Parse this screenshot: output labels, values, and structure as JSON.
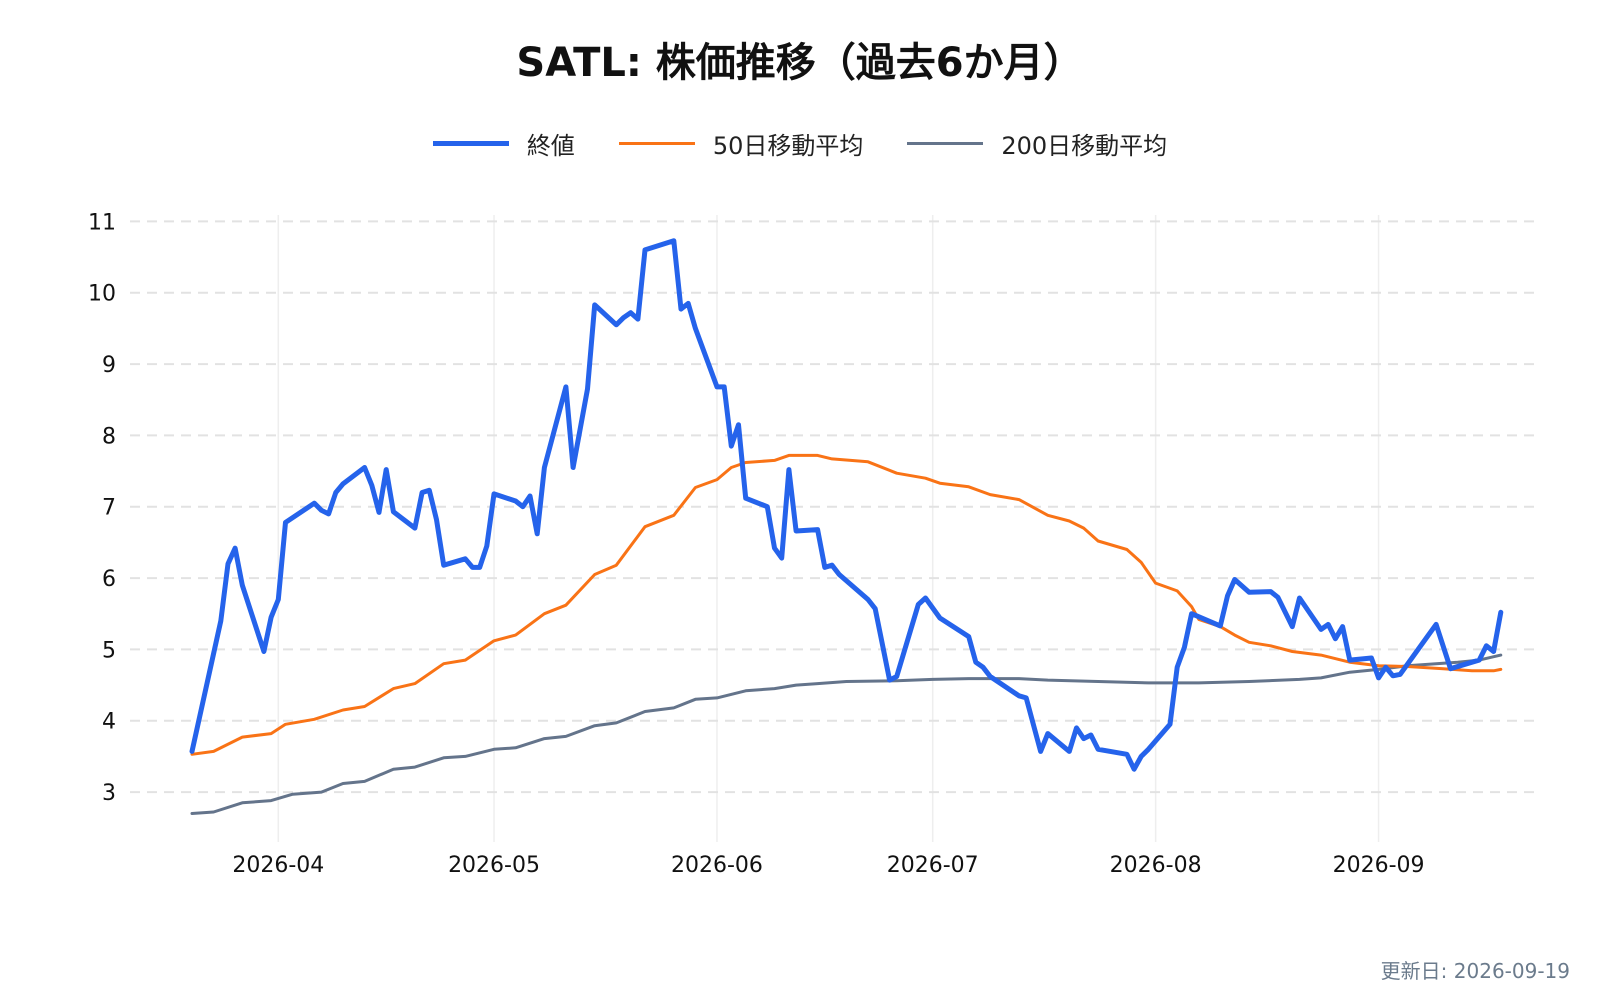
{
  "title": "SATL: 株価推移（過去6か月）",
  "updated_label": "更新日: 2026-09-19",
  "chart_data": {
    "type": "line",
    "x_range": [
      "2026-03-20",
      "2026-09-19"
    ],
    "ylim": [
      2.3,
      11.3
    ],
    "yticks": [
      3,
      4,
      5,
      6,
      7,
      8,
      9,
      10,
      11
    ],
    "xticks": [
      "2026-04-01",
      "2026-05-01",
      "2026-06-01",
      "2026-07-01",
      "2026-08-01",
      "2026-09-01"
    ],
    "xtick_labels": [
      "2026-04",
      "2026-05",
      "2026-06",
      "2026-07",
      "2026-08",
      "2026-09"
    ],
    "grid": "horizontal dashed + vertical",
    "legend_position": "top-center",
    "series": [
      {
        "name": "終値",
        "color": "#2563eb",
        "width": 5,
        "points": [
          [
            "2026-03-20",
            3.57
          ],
          [
            "2026-03-24",
            5.4
          ],
          [
            "2026-03-25",
            6.2
          ],
          [
            "2026-03-26",
            6.42
          ],
          [
            "2026-03-27",
            5.9
          ],
          [
            "2026-03-30",
            4.97
          ],
          [
            "2026-03-31",
            5.45
          ],
          [
            "2026-04-01",
            5.7
          ],
          [
            "2026-04-02",
            6.78
          ],
          [
            "2026-04-06",
            7.05
          ],
          [
            "2026-04-07",
            6.95
          ],
          [
            "2026-04-08",
            6.9
          ],
          [
            "2026-04-09",
            7.2
          ],
          [
            "2026-04-10",
            7.32
          ],
          [
            "2026-04-13",
            7.55
          ],
          [
            "2026-04-14",
            7.3
          ],
          [
            "2026-04-15",
            6.92
          ],
          [
            "2026-04-16",
            7.52
          ],
          [
            "2026-04-17",
            6.93
          ],
          [
            "2026-04-20",
            6.7
          ],
          [
            "2026-04-21",
            7.2
          ],
          [
            "2026-04-22",
            7.23
          ],
          [
            "2026-04-23",
            6.82
          ],
          [
            "2026-04-24",
            6.18
          ],
          [
            "2026-04-27",
            6.27
          ],
          [
            "2026-04-28",
            6.15
          ],
          [
            "2026-04-29",
            6.15
          ],
          [
            "2026-04-30",
            6.45
          ],
          [
            "2026-05-01",
            7.18
          ],
          [
            "2026-05-04",
            7.08
          ],
          [
            "2026-05-05",
            7.0
          ],
          [
            "2026-05-06",
            7.15
          ],
          [
            "2026-05-07",
            6.62
          ],
          [
            "2026-05-08",
            7.55
          ],
          [
            "2026-05-11",
            8.68
          ],
          [
            "2026-05-12",
            7.55
          ],
          [
            "2026-05-14",
            8.65
          ],
          [
            "2026-05-15",
            9.83
          ],
          [
            "2026-05-18",
            9.55
          ],
          [
            "2026-05-19",
            9.65
          ],
          [
            "2026-05-20",
            9.72
          ],
          [
            "2026-05-21",
            9.63
          ],
          [
            "2026-05-22",
            10.6
          ],
          [
            "2026-05-26",
            10.73
          ],
          [
            "2026-05-27",
            9.77
          ],
          [
            "2026-05-28",
            9.85
          ],
          [
            "2026-05-29",
            9.5
          ],
          [
            "2026-06-01",
            8.68
          ],
          [
            "2026-06-02",
            8.68
          ],
          [
            "2026-06-03",
            7.85
          ],
          [
            "2026-06-04",
            8.15
          ],
          [
            "2026-06-05",
            7.12
          ],
          [
            "2026-06-08",
            7.0
          ],
          [
            "2026-06-09",
            6.42
          ],
          [
            "2026-06-10",
            6.28
          ],
          [
            "2026-06-11",
            7.52
          ],
          [
            "2026-06-12",
            6.66
          ],
          [
            "2026-06-15",
            6.68
          ],
          [
            "2026-06-16",
            6.15
          ],
          [
            "2026-06-17",
            6.18
          ],
          [
            "2026-06-18",
            6.05
          ],
          [
            "2026-06-22",
            5.7
          ],
          [
            "2026-06-23",
            5.57
          ],
          [
            "2026-06-25",
            4.57
          ],
          [
            "2026-06-26",
            4.62
          ],
          [
            "2026-06-29",
            5.63
          ],
          [
            "2026-06-30",
            5.72
          ],
          [
            "2026-07-01",
            5.58
          ],
          [
            "2026-07-02",
            5.44
          ],
          [
            "2026-07-06",
            5.18
          ],
          [
            "2026-07-07",
            4.82
          ],
          [
            "2026-07-08",
            4.75
          ],
          [
            "2026-07-09",
            4.62
          ],
          [
            "2026-07-13",
            4.35
          ],
          [
            "2026-07-14",
            4.32
          ],
          [
            "2026-07-16",
            3.57
          ],
          [
            "2026-07-17",
            3.82
          ],
          [
            "2026-07-20",
            3.57
          ],
          [
            "2026-07-21",
            3.9
          ],
          [
            "2026-07-22",
            3.75
          ],
          [
            "2026-07-23",
            3.8
          ],
          [
            "2026-07-24",
            3.6
          ],
          [
            "2026-07-28",
            3.53
          ],
          [
            "2026-07-29",
            3.32
          ],
          [
            "2026-07-30",
            3.5
          ],
          [
            "2026-07-31",
            3.6
          ],
          [
            "2026-08-03",
            3.95
          ],
          [
            "2026-08-04",
            4.75
          ],
          [
            "2026-08-05",
            5.03
          ],
          [
            "2026-08-06",
            5.5
          ],
          [
            "2026-08-10",
            5.33
          ],
          [
            "2026-08-11",
            5.75
          ],
          [
            "2026-08-12",
            5.98
          ],
          [
            "2026-08-14",
            5.8
          ],
          [
            "2026-08-17",
            5.81
          ],
          [
            "2026-08-18",
            5.73
          ],
          [
            "2026-08-20",
            5.32
          ],
          [
            "2026-08-21",
            5.72
          ],
          [
            "2026-08-24",
            5.28
          ],
          [
            "2026-08-25",
            5.35
          ],
          [
            "2026-08-26",
            5.15
          ],
          [
            "2026-08-27",
            5.32
          ],
          [
            "2026-08-28",
            4.85
          ],
          [
            "2026-08-31",
            4.88
          ],
          [
            "2026-09-01",
            4.6
          ],
          [
            "2026-09-02",
            4.75
          ],
          [
            "2026-09-03",
            4.63
          ],
          [
            "2026-09-04",
            4.65
          ],
          [
            "2026-09-09",
            5.35
          ],
          [
            "2026-09-11",
            4.73
          ],
          [
            "2026-09-14",
            4.82
          ],
          [
            "2026-09-15",
            4.85
          ],
          [
            "2026-09-16",
            5.05
          ],
          [
            "2026-09-17",
            4.97
          ],
          [
            "2026-09-18",
            5.52
          ]
        ]
      },
      {
        "name": "50日移動平均",
        "color": "#f97316",
        "width": 3,
        "points": [
          [
            "2026-03-20",
            3.53
          ],
          [
            "2026-03-23",
            3.57
          ],
          [
            "2026-03-27",
            3.77
          ],
          [
            "2026-03-31",
            3.82
          ],
          [
            "2026-04-02",
            3.95
          ],
          [
            "2026-04-06",
            4.02
          ],
          [
            "2026-04-10",
            4.15
          ],
          [
            "2026-04-13",
            4.2
          ],
          [
            "2026-04-17",
            4.45
          ],
          [
            "2026-04-20",
            4.52
          ],
          [
            "2026-04-24",
            4.8
          ],
          [
            "2026-04-27",
            4.85
          ],
          [
            "2026-05-01",
            5.12
          ],
          [
            "2026-05-04",
            5.2
          ],
          [
            "2026-05-08",
            5.5
          ],
          [
            "2026-05-11",
            5.62
          ],
          [
            "2026-05-15",
            6.05
          ],
          [
            "2026-05-18",
            6.18
          ],
          [
            "2026-05-22",
            6.72
          ],
          [
            "2026-05-26",
            6.88
          ],
          [
            "2026-05-29",
            7.27
          ],
          [
            "2026-06-01",
            7.38
          ],
          [
            "2026-06-03",
            7.55
          ],
          [
            "2026-06-05",
            7.62
          ],
          [
            "2026-06-09",
            7.65
          ],
          [
            "2026-06-11",
            7.72
          ],
          [
            "2026-06-15",
            7.72
          ],
          [
            "2026-06-17",
            7.67
          ],
          [
            "2026-06-22",
            7.63
          ],
          [
            "2026-06-26",
            7.47
          ],
          [
            "2026-06-30",
            7.4
          ],
          [
            "2026-07-02",
            7.33
          ],
          [
            "2026-07-06",
            7.28
          ],
          [
            "2026-07-09",
            7.17
          ],
          [
            "2026-07-13",
            7.1
          ],
          [
            "2026-07-17",
            6.88
          ],
          [
            "2026-07-20",
            6.8
          ],
          [
            "2026-07-22",
            6.7
          ],
          [
            "2026-07-24",
            6.52
          ],
          [
            "2026-07-28",
            6.4
          ],
          [
            "2026-07-30",
            6.22
          ],
          [
            "2026-08-01",
            5.93
          ],
          [
            "2026-08-04",
            5.82
          ],
          [
            "2026-08-06",
            5.6
          ],
          [
            "2026-08-07",
            5.42
          ],
          [
            "2026-08-10",
            5.32
          ],
          [
            "2026-08-12",
            5.2
          ],
          [
            "2026-08-14",
            5.1
          ],
          [
            "2026-08-17",
            5.05
          ],
          [
            "2026-08-20",
            4.97
          ],
          [
            "2026-08-24",
            4.92
          ],
          [
            "2026-08-28",
            4.82
          ],
          [
            "2026-09-01",
            4.77
          ],
          [
            "2026-09-05",
            4.76
          ],
          [
            "2026-09-10",
            4.73
          ],
          [
            "2026-09-14",
            4.7
          ],
          [
            "2026-09-17",
            4.7
          ],
          [
            "2026-09-18",
            4.72
          ]
        ]
      },
      {
        "name": "200日移動平均",
        "color": "#64748b",
        "width": 3,
        "points": [
          [
            "2026-03-20",
            2.7
          ],
          [
            "2026-03-23",
            2.72
          ],
          [
            "2026-03-27",
            2.85
          ],
          [
            "2026-03-31",
            2.88
          ],
          [
            "2026-04-03",
            2.97
          ],
          [
            "2026-04-07",
            3.0
          ],
          [
            "2026-04-10",
            3.12
          ],
          [
            "2026-04-13",
            3.15
          ],
          [
            "2026-04-17",
            3.32
          ],
          [
            "2026-04-20",
            3.35
          ],
          [
            "2026-04-24",
            3.48
          ],
          [
            "2026-04-27",
            3.5
          ],
          [
            "2026-05-01",
            3.6
          ],
          [
            "2026-05-04",
            3.62
          ],
          [
            "2026-05-08",
            3.75
          ],
          [
            "2026-05-11",
            3.78
          ],
          [
            "2026-05-15",
            3.93
          ],
          [
            "2026-05-18",
            3.97
          ],
          [
            "2026-05-22",
            4.13
          ],
          [
            "2026-05-26",
            4.18
          ],
          [
            "2026-05-29",
            4.3
          ],
          [
            "2026-06-01",
            4.32
          ],
          [
            "2026-06-05",
            4.42
          ],
          [
            "2026-06-09",
            4.45
          ],
          [
            "2026-06-12",
            4.5
          ],
          [
            "2026-06-15",
            4.52
          ],
          [
            "2026-06-19",
            4.55
          ],
          [
            "2026-06-26",
            4.56
          ],
          [
            "2026-07-01",
            4.58
          ],
          [
            "2026-07-06",
            4.59
          ],
          [
            "2026-07-13",
            4.59
          ],
          [
            "2026-07-17",
            4.57
          ],
          [
            "2026-07-24",
            4.55
          ],
          [
            "2026-07-31",
            4.53
          ],
          [
            "2026-08-07",
            4.53
          ],
          [
            "2026-08-14",
            4.55
          ],
          [
            "2026-08-21",
            4.58
          ],
          [
            "2026-08-24",
            4.6
          ],
          [
            "2026-08-28",
            4.68
          ],
          [
            "2026-09-01",
            4.72
          ],
          [
            "2026-09-05",
            4.77
          ],
          [
            "2026-09-09",
            4.8
          ],
          [
            "2026-09-12",
            4.82
          ],
          [
            "2026-09-15",
            4.85
          ],
          [
            "2026-09-18",
            4.92
          ]
        ]
      }
    ]
  }
}
